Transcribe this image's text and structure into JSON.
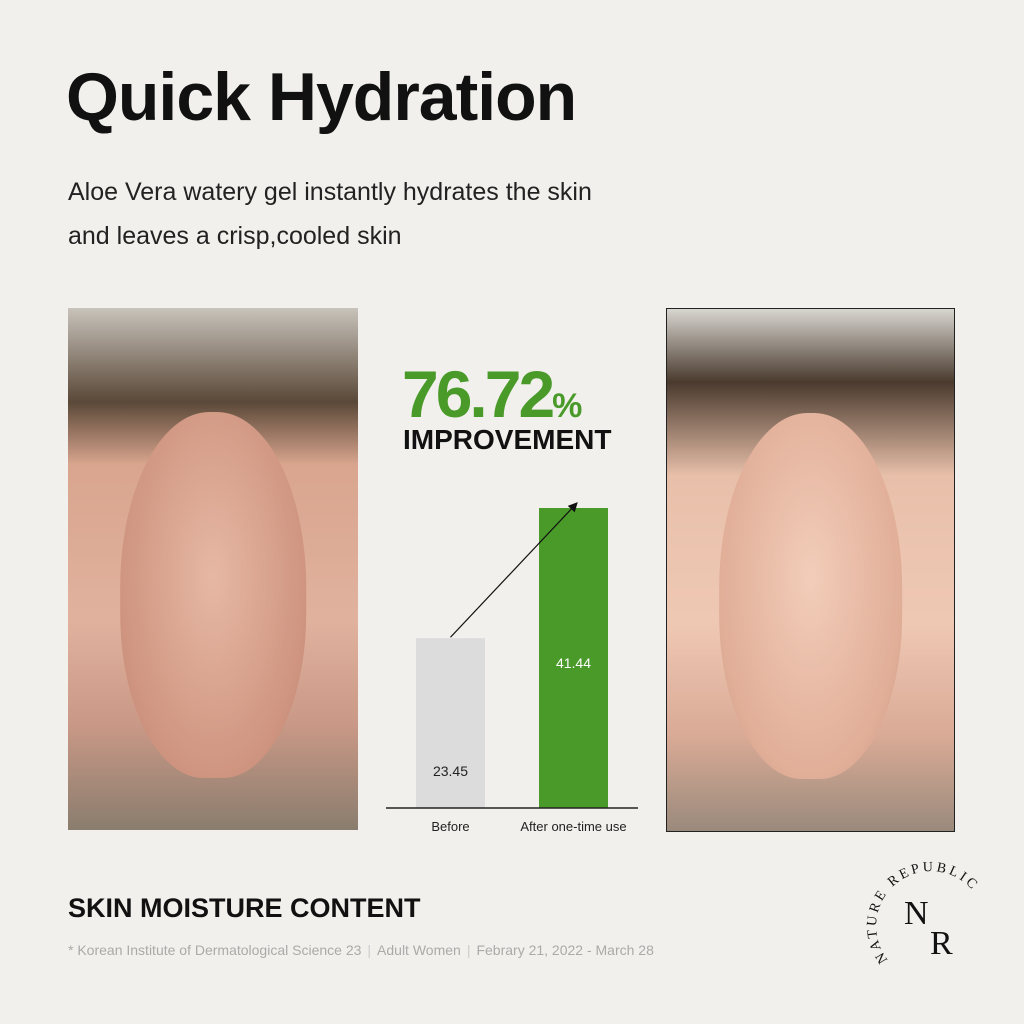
{
  "title": "Quick Hydration",
  "subtitle": [
    "Aloe Vera watery gel instantly hydrates the skin",
    "and leaves a crisp,cooled skin"
  ],
  "headline": {
    "value": "76.72",
    "unit": "%",
    "label": "IMPROVEMENT"
  },
  "section_title": "SKIN MOISTURE CONTENT",
  "footnote": {
    "source": "* Korean Institute of Dermatological Science 23",
    "subjects": "Adult Women",
    "period": "Febrary 21, 2022 - March 28"
  },
  "brand": {
    "arc_text": "NATURE REPUBLIC",
    "mark_top": "N",
    "mark_bottom": "R"
  },
  "colors": {
    "accent": "#4a9a2a",
    "before_bar": "#dcdcdc",
    "background": "#f1f0ec"
  },
  "chart_data": {
    "type": "bar",
    "categories": [
      "Before",
      "After one-time use"
    ],
    "values": [
      23.45,
      41.44
    ],
    "data_labels": [
      "23.45",
      "41.44"
    ],
    "colors": [
      "#dcdcdc",
      "#4a9a2a"
    ],
    "ylim": [
      0,
      41.44
    ],
    "grid": false,
    "annotation": "arrow from Before to After"
  }
}
